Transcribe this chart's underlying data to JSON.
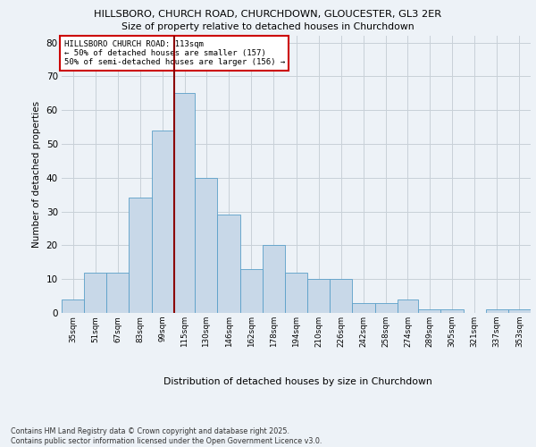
{
  "title1": "HILLSBORO, CHURCH ROAD, CHURCHDOWN, GLOUCESTER, GL3 2ER",
  "title2": "Size of property relative to detached houses in Churchdown",
  "xlabel": "Distribution of detached houses by size in Churchdown",
  "ylabel": "Number of detached properties",
  "bin_labels": [
    "35sqm",
    "51sqm",
    "67sqm",
    "83sqm",
    "99sqm",
    "115sqm",
    "130sqm",
    "146sqm",
    "162sqm",
    "178sqm",
    "194sqm",
    "210sqm",
    "226sqm",
    "242sqm",
    "258sqm",
    "274sqm",
    "289sqm",
    "305sqm",
    "321sqm",
    "337sqm",
    "353sqm"
  ],
  "bin_edges": [
    35,
    51,
    67,
    83,
    99,
    115,
    130,
    146,
    162,
    178,
    194,
    210,
    226,
    242,
    258,
    274,
    289,
    305,
    321,
    337,
    353,
    369
  ],
  "bar_heights": [
    4,
    12,
    12,
    34,
    54,
    65,
    40,
    29,
    13,
    20,
    12,
    10,
    10,
    3,
    3,
    4,
    1,
    1,
    0,
    1,
    1
  ],
  "bar_color": "#c8d8e8",
  "bar_edge_color": "#5a9fc8",
  "grid_color": "#c8d0d8",
  "vline_x": 115,
  "vline_color": "#8b0000",
  "annotation_text": "HILLSBORO CHURCH ROAD: 113sqm\n← 50% of detached houses are smaller (157)\n50% of semi-detached houses are larger (156) →",
  "annotation_box_color": "#ffffff",
  "annotation_box_edge_color": "#cc0000",
  "ylim": [
    0,
    82
  ],
  "yticks": [
    0,
    10,
    20,
    30,
    40,
    50,
    60,
    70,
    80
  ],
  "footnote": "Contains HM Land Registry data © Crown copyright and database right 2025.\nContains public sector information licensed under the Open Government Licence v3.0.",
  "bg_color": "#edf2f7"
}
